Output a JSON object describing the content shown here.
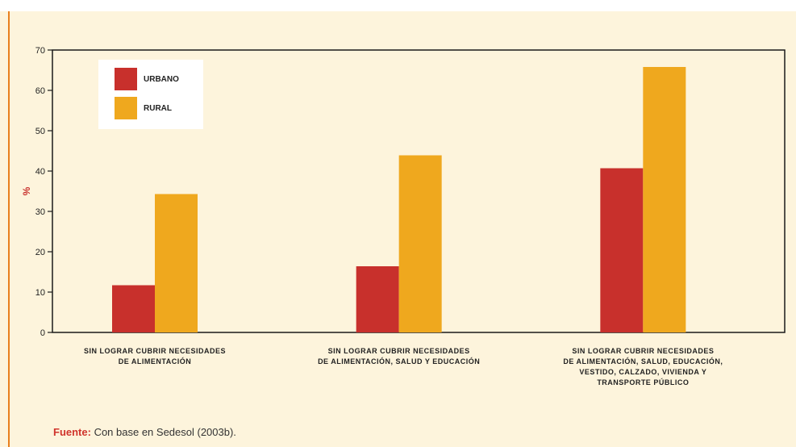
{
  "chart_data": {
    "type": "bar",
    "ylabel": "%",
    "ylim": [
      0,
      70
    ],
    "yticks": [
      "0",
      "10",
      "20",
      "30",
      "40",
      "50",
      "60",
      "70"
    ],
    "categories": [
      [
        "SIN LOGRAR CUBRIR NECESIDADES",
        "DE ALIMENTACIÓN"
      ],
      [
        "SIN LOGRAR CUBRIR NECESIDADES",
        "DE ALIMENTACIÓN, SALUD Y EDUCACIÓN"
      ],
      [
        "SIN LOGRAR CUBRIR NECESIDADES",
        "DE ALIMENTACIÓN, SALUD, EDUCACIÓN,",
        "VESTIDO, CALZADO, VIVIENDA Y",
        "TRANSPORTE PÚBLICO"
      ]
    ],
    "series": [
      {
        "name": "URBANO",
        "color": "#c8302c",
        "values": [
          11.7,
          16.4,
          40.7
        ]
      },
      {
        "name": "RURAL",
        "color": "#efa81e",
        "values": [
          34.3,
          43.9,
          65.8
        ]
      }
    ],
    "legend_position": "top-left",
    "grid": false
  },
  "source": {
    "key": "Fuente:",
    "text": " Con base en Sedesol (2003b)."
  }
}
